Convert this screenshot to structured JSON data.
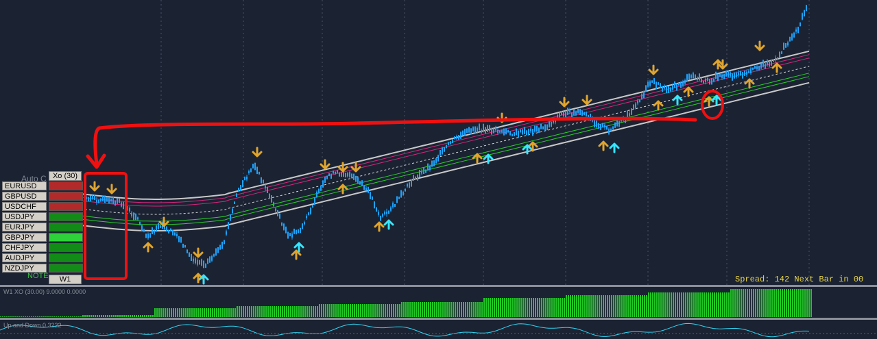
{
  "main_chart": {
    "auto_label": "Auto C",
    "spread_text": "Spread: 142 Next Bar in 00",
    "colors": {
      "background": "#1b2333",
      "candles": "#1fa3ff",
      "arrow_gold": "#e1a52c",
      "arrow_cyan": "#34e6ff",
      "band_gray": "#c8c8c8",
      "band_magenta": "#d8257c",
      "band_green": "#28d12a",
      "annotation_red": "#f01010"
    }
  },
  "currency_panel": {
    "title": "Xo (30)",
    "timeframe": "W1",
    "note_label": "NOTE",
    "pairs": [
      {
        "symbol": "EURUSD",
        "status": "red"
      },
      {
        "symbol": "GBPUSD",
        "status": "red"
      },
      {
        "symbol": "USDCHF",
        "status": "red"
      },
      {
        "symbol": "USDJPY",
        "status": "green"
      },
      {
        "symbol": "EURJPY",
        "status": "green"
      },
      {
        "symbol": "GBPJPY",
        "status": "bright-green"
      },
      {
        "symbol": "CHFJPY",
        "status": "green"
      },
      {
        "symbol": "AUDJPY",
        "status": "green"
      },
      {
        "symbol": "NZDJPY",
        "status": "green"
      }
    ]
  },
  "indicator_xo": {
    "label": "W1 XO (30.00) 9.0000 0.0000",
    "color": "#22c626"
  },
  "indicator_updown": {
    "label": "Up and Down 0.3222",
    "color": "#33d4f0"
  }
}
